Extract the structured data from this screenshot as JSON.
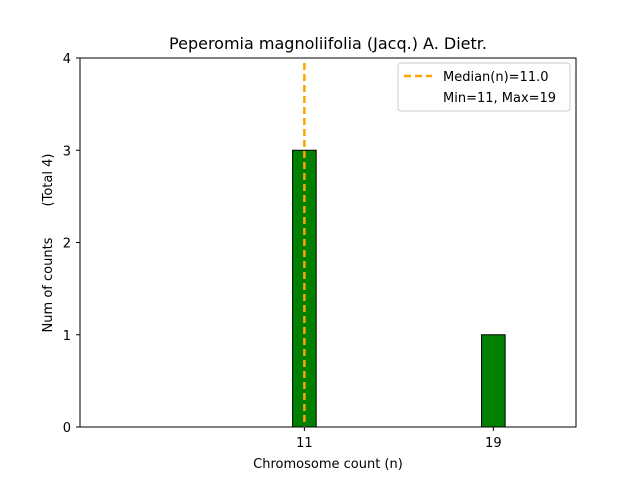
{
  "chart_data": {
    "type": "bar",
    "title": "Peperomia magnoliifolia (Jacq.) A. Dietr.",
    "xlabel": "Chromosome count (n)",
    "ylabel": "Num of counts",
    "ylabel_secondary": "(Total 4)",
    "x": [
      11,
      19
    ],
    "values": [
      3,
      1
    ],
    "x_ticks": [
      "11",
      "19"
    ],
    "y_ticks": [
      "0",
      "1",
      "2",
      "3",
      "4"
    ],
    "xlim": [
      1.5,
      22.5
    ],
    "ylim": [
      0,
      4
    ],
    "bar_width": 1,
    "bar_color": "#008000",
    "median": {
      "value": 11.0,
      "color": "#FFA500"
    },
    "legend": {
      "placement": "top-right",
      "entries": [
        "Median(n)=11.0",
        "Min=11, Max=19"
      ]
    },
    "grid": false
  }
}
